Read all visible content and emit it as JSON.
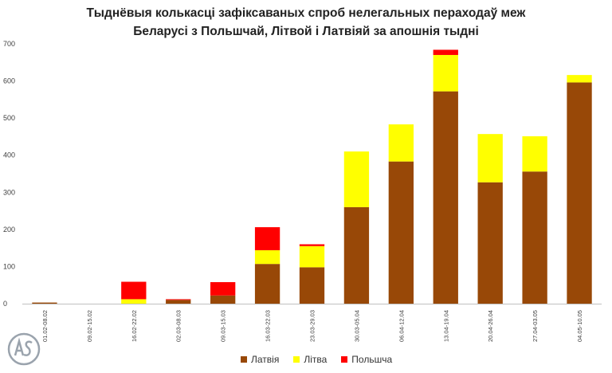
{
  "chart_data": {
    "type": "bar",
    "stacked": true,
    "title_line1": "Тыднёвыя колькасці зафіксаваных спроб нелегальных пераходаў меж",
    "title_line2": "Беларусі з Польшчай, Літвой і Латвіяй за апошнія тыдні",
    "categories": [
      "01.02-08.02",
      "09.02-15.02",
      "16.02-22.02",
      "02.03-08.03",
      "09.03-15.03",
      "16.03-22.03",
      "23.03-29.03",
      "30.03-05.04",
      "06.04-12.04",
      "13.04-19.04",
      "20.04-26.04",
      "27.04-03.05",
      "04.05-10.05"
    ],
    "series": [
      {
        "name": "Латвія",
        "color": "#984807",
        "values": [
          3,
          0,
          0,
          10,
          22,
          107,
          98,
          260,
          383,
          572,
          327,
          356,
          596
        ]
      },
      {
        "name": "Літва",
        "color": "#ffff00",
        "values": [
          0,
          0,
          12,
          0,
          0,
          37,
          57,
          150,
          100,
          98,
          130,
          95,
          20
        ]
      },
      {
        "name": "Польшча",
        "color": "#ff0000",
        "values": [
          0,
          0,
          47,
          2,
          36,
          62,
          5,
          0,
          0,
          14,
          0,
          0,
          0
        ]
      }
    ],
    "ylim": [
      0,
      700
    ],
    "yticks": [
      "0",
      "100",
      "200",
      "300",
      "400",
      "500",
      "600",
      "700"
    ],
    "grid": false,
    "legend_position": "bottom"
  }
}
